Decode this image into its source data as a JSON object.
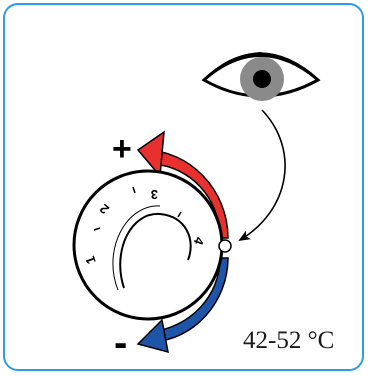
{
  "temperature_range": "42-52 °C",
  "increase_sign": "+",
  "decrease_sign": "-",
  "dial_numbers": [
    "1",
    "2",
    "3",
    "4"
  ],
  "colors": {
    "border": "#2f9be0",
    "increase_arrow": "#e8312f",
    "decrease_arrow": "#1e55a8",
    "iris": "#8a8a8a",
    "outline": "#000000"
  },
  "icons": {
    "eye": "eye-icon",
    "increase": "increase-arrow-icon",
    "decrease": "decrease-arrow-icon",
    "pointer": "pointer-arrow-icon"
  }
}
